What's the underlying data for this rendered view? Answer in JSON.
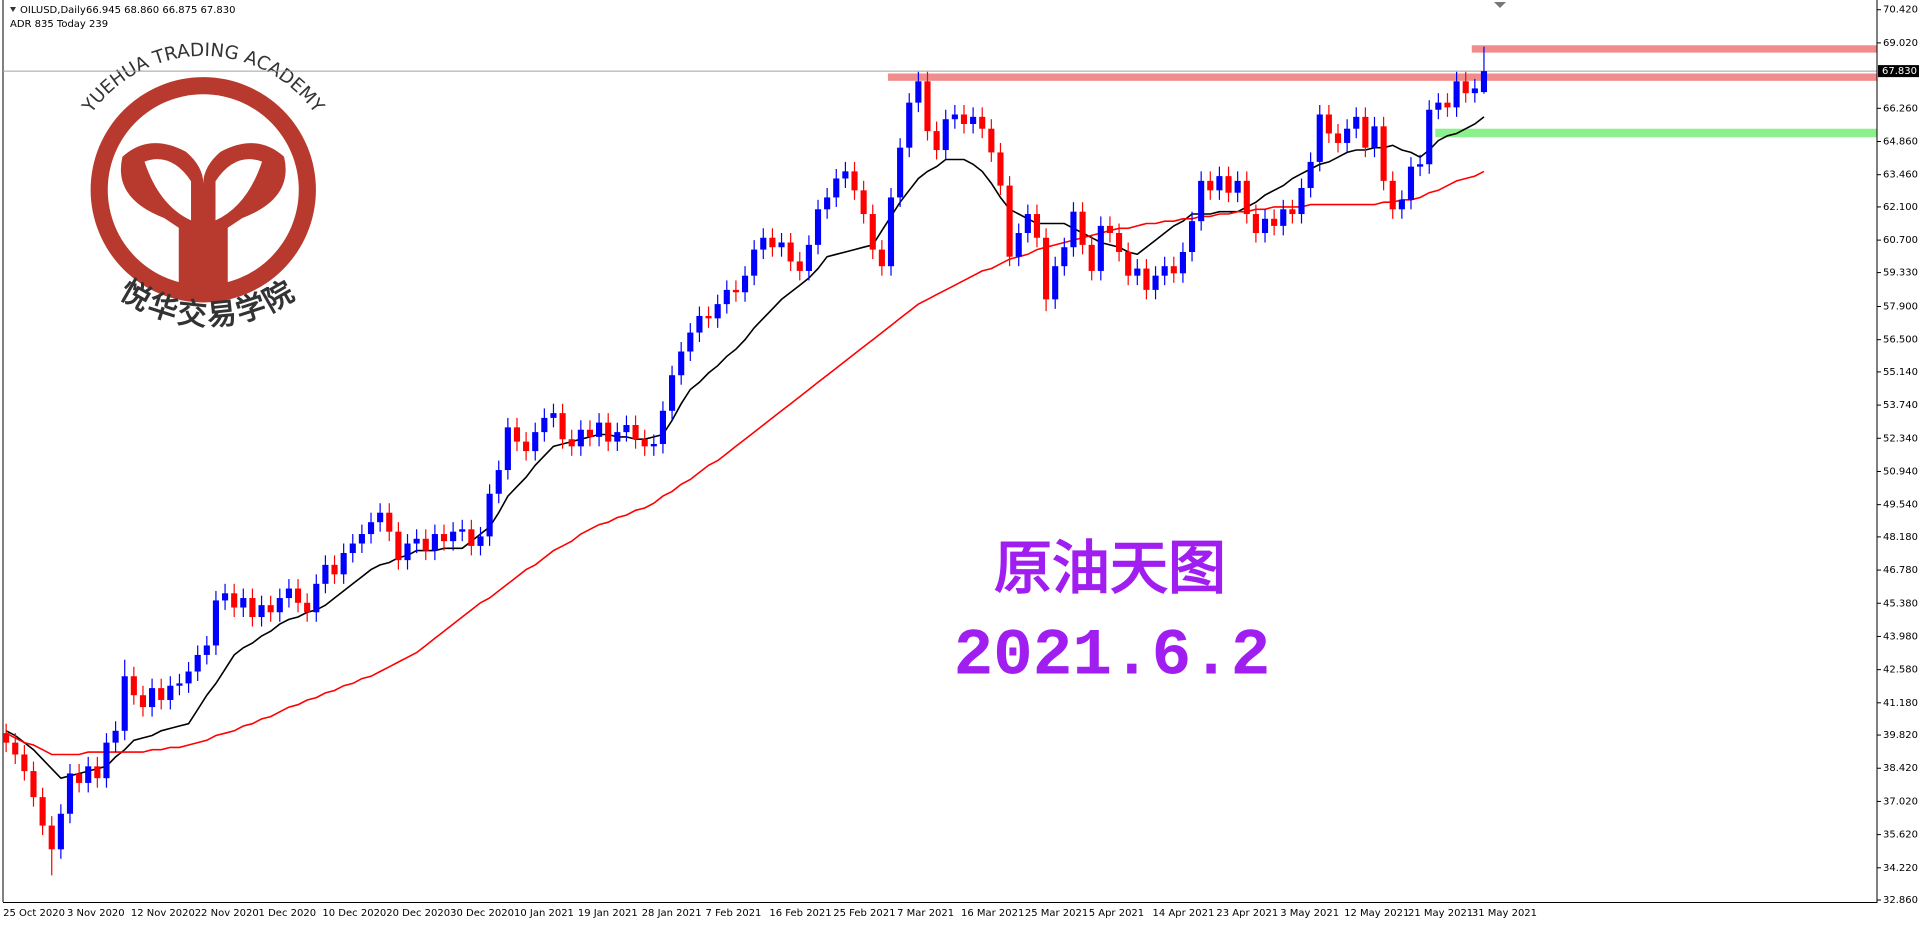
{
  "chart_data": {
    "type": "candlestick",
    "symbol_label": "OILUSD,Daily",
    "ohlc_label": "66.945 68.860 66.875 67.830",
    "info_label": "ADR 835  Today 239",
    "categories": [
      "25 Oct 2020",
      null,
      null,
      null,
      null,
      null,
      null,
      "3 Nov 2020",
      null,
      null,
      null,
      null,
      null,
      null,
      "12 Nov 2020",
      null,
      null,
      null,
      null,
      null,
      null,
      "22 Nov 2020",
      null,
      null,
      null,
      null,
      null,
      null,
      "1 Dec 2020",
      null,
      null,
      null,
      null,
      null,
      null,
      "10 Dec 2020",
      null,
      null,
      null,
      null,
      null,
      null,
      "20 Dec 2020",
      null,
      null,
      null,
      null,
      null,
      null,
      "30 Dec 2020",
      null,
      null,
      null,
      null,
      null,
      null,
      "10 Jan 2021",
      null,
      null,
      null,
      null,
      null,
      null,
      "19 Jan 2021",
      null,
      null,
      null,
      null,
      null,
      null,
      "28 Jan 2021",
      null,
      null,
      null,
      null,
      null,
      null,
      "7 Feb 2021",
      null,
      null,
      null,
      null,
      null,
      null,
      "16 Feb 2021",
      null,
      null,
      null,
      null,
      null,
      null,
      "25 Feb 2021",
      null,
      null,
      null,
      null,
      null,
      null,
      "7 Mar 2021",
      null,
      null,
      null,
      null,
      null,
      null,
      "16 Mar 2021",
      null,
      null,
      null,
      null,
      null,
      null,
      "25 Mar 2021",
      null,
      null,
      null,
      null,
      null,
      null,
      "5 Apr 2021",
      null,
      null,
      null,
      null,
      null,
      null,
      "14 Apr 2021",
      null,
      null,
      null,
      null,
      null,
      null,
      "23 Apr 2021",
      null,
      null,
      null,
      null,
      null,
      null,
      "3 May 2021",
      null,
      null,
      null,
      null,
      null,
      null,
      "12 May 2021",
      null,
      null,
      null,
      null,
      null,
      null,
      "21 May 2021",
      null,
      null,
      null,
      null,
      null,
      null,
      "31 May 2021",
      null
    ],
    "open": [
      39.9,
      39.5,
      39.0,
      38.3,
      37.2,
      36.0,
      35.0,
      36.5,
      38.2,
      37.8,
      38.5,
      38.0,
      39.5,
      40.0,
      42.3,
      41.5,
      41.0,
      41.8,
      41.3,
      41.9,
      42.0,
      42.5,
      43.2,
      43.6,
      45.5,
      45.8,
      45.2,
      45.6,
      44.8,
      45.3,
      45.0,
      45.6,
      46.0,
      45.4,
      45.0,
      46.2,
      47.0,
      46.6,
      47.5,
      47.9,
      48.3,
      48.8,
      49.2,
      48.4,
      47.2,
      47.9,
      48.1,
      47.6,
      48.3,
      48.0,
      48.4,
      48.5,
      47.8,
      48.2,
      50.0,
      51.0,
      52.8,
      52.2,
      51.8,
      52.6,
      53.2,
      53.4,
      52.3,
      52.0,
      52.7,
      52.4,
      53.0,
      52.2,
      52.6,
      52.9,
      52.3,
      52.0,
      52.1,
      53.5,
      55.0,
      56.0,
      56.8,
      57.5,
      57.4,
      58.0,
      58.6,
      58.5,
      59.2,
      60.3,
      60.8,
      60.4,
      60.6,
      59.8,
      59.4,
      60.5,
      62.0,
      62.5,
      63.3,
      63.6,
      62.8,
      61.8,
      60.3,
      59.6,
      62.5,
      64.6,
      66.5,
      67.4,
      65.3,
      64.5,
      65.8,
      66.0,
      65.6,
      65.9,
      65.4,
      64.4,
      63.0,
      60.0,
      61.0,
      61.8,
      60.8,
      58.2,
      59.6,
      60.4,
      61.9,
      60.5,
      59.4,
      61.3,
      61.0,
      60.2,
      59.2,
      59.5,
      58.6,
      59.2,
      59.6,
      59.3,
      60.2,
      61.5,
      63.2,
      62.8,
      63.4,
      62.7,
      63.2,
      61.8,
      61.0,
      61.6,
      61.3,
      62.0,
      61.8,
      62.9,
      64.0,
      66.0,
      65.2,
      64.8,
      65.4,
      65.9,
      64.6,
      65.5,
      63.2,
      62.0,
      62.4,
      63.8,
      63.9,
      66.2,
      66.5,
      66.3,
      67.4,
      66.9,
      66.945
    ],
    "high": [
      40.3,
      39.9,
      39.4,
      38.7,
      37.6,
      36.4,
      36.9,
      38.6,
      38.6,
      38.9,
      38.9,
      39.9,
      40.4,
      43.0,
      42.7,
      41.9,
      42.2,
      42.2,
      42.3,
      42.4,
      42.9,
      43.6,
      44.0,
      45.9,
      46.2,
      46.2,
      46.0,
      46.0,
      45.7,
      45.7,
      46.0,
      46.4,
      46.4,
      45.8,
      46.6,
      47.4,
      47.4,
      47.9,
      48.3,
      48.7,
      49.2,
      49.6,
      49.6,
      48.8,
      48.3,
      48.5,
      48.5,
      48.7,
      48.7,
      48.8,
      48.9,
      48.9,
      48.6,
      50.4,
      51.4,
      53.2,
      53.2,
      52.6,
      53.0,
      53.6,
      53.8,
      53.8,
      52.7,
      53.1,
      53.1,
      53.4,
      53.4,
      53.0,
      53.3,
      53.3,
      52.7,
      52.5,
      53.9,
      55.4,
      56.4,
      57.2,
      57.9,
      57.9,
      58.4,
      59.0,
      59.0,
      59.6,
      60.7,
      61.2,
      61.2,
      61.0,
      61.0,
      60.2,
      60.9,
      62.4,
      62.9,
      63.7,
      64.0,
      64.0,
      63.2,
      62.2,
      60.7,
      62.9,
      65.0,
      66.9,
      67.8,
      67.8,
      65.7,
      66.2,
      66.4,
      66.4,
      66.3,
      66.3,
      65.8,
      64.8,
      63.4,
      61.4,
      62.2,
      62.2,
      61.2,
      60.0,
      60.8,
      62.3,
      62.3,
      60.9,
      61.7,
      61.7,
      61.4,
      60.6,
      59.9,
      59.9,
      59.6,
      60.0,
      60.0,
      60.6,
      61.9,
      63.6,
      63.6,
      63.8,
      63.8,
      63.6,
      63.6,
      62.2,
      62.0,
      62.0,
      62.4,
      62.4,
      63.3,
      64.4,
      66.4,
      66.4,
      65.6,
      65.8,
      66.3,
      66.3,
      65.9,
      65.9,
      63.6,
      62.8,
      64.2,
      64.3,
      66.6,
      66.9,
      66.9,
      67.8,
      67.8,
      67.5,
      68.86
    ],
    "low": [
      39.1,
      38.6,
      37.9,
      36.8,
      35.6,
      33.9,
      34.6,
      36.1,
      37.4,
      37.4,
      37.6,
      37.6,
      39.1,
      39.6,
      41.1,
      40.6,
      40.6,
      40.9,
      40.9,
      41.5,
      41.6,
      42.1,
      42.8,
      43.2,
      45.1,
      44.8,
      44.8,
      44.4,
      44.4,
      44.6,
      44.6,
      45.2,
      45.0,
      44.6,
      44.6,
      45.8,
      46.2,
      46.2,
      47.1,
      47.5,
      47.9,
      48.4,
      48.0,
      46.8,
      46.8,
      47.5,
      47.2,
      47.2,
      47.6,
      47.6,
      48.0,
      47.4,
      47.4,
      47.8,
      49.6,
      50.6,
      51.8,
      51.4,
      51.4,
      52.2,
      52.8,
      51.9,
      51.6,
      51.6,
      52.0,
      52.0,
      51.8,
      51.8,
      52.2,
      51.9,
      51.6,
      51.6,
      51.7,
      53.1,
      54.6,
      55.6,
      56.4,
      57.0,
      57.0,
      57.6,
      58.1,
      58.1,
      58.8,
      59.9,
      60.0,
      60.0,
      59.4,
      59.0,
      59.0,
      60.1,
      61.6,
      62.1,
      62.9,
      62.4,
      61.4,
      59.9,
      59.2,
      59.2,
      62.1,
      64.2,
      66.1,
      64.9,
      64.1,
      64.1,
      65.4,
      65.2,
      65.2,
      65.0,
      64.0,
      62.6,
      59.6,
      59.6,
      60.6,
      60.4,
      57.7,
      57.8,
      59.2,
      60.0,
      60.1,
      59.0,
      59.0,
      60.6,
      59.8,
      58.8,
      58.8,
      58.2,
      58.2,
      58.8,
      58.9,
      58.9,
      59.8,
      61.1,
      62.4,
      62.4,
      62.3,
      62.3,
      61.4,
      60.6,
      60.6,
      60.9,
      60.9,
      61.4,
      61.4,
      62.5,
      63.6,
      64.8,
      64.4,
      64.4,
      65.0,
      64.2,
      64.2,
      62.8,
      61.6,
      61.6,
      62.0,
      63.4,
      63.5,
      65.8,
      65.9,
      65.9,
      66.5,
      66.5,
      66.875
    ],
    "close": [
      39.5,
      39.0,
      38.3,
      37.2,
      36.0,
      35.0,
      36.5,
      38.2,
      37.8,
      38.5,
      38.0,
      39.5,
      40.0,
      42.3,
      41.5,
      41.0,
      41.8,
      41.3,
      41.9,
      42.0,
      42.5,
      43.2,
      43.6,
      45.5,
      45.8,
      45.2,
      45.6,
      44.8,
      45.3,
      45.0,
      45.6,
      46.0,
      45.4,
      45.0,
      46.2,
      47.0,
      46.6,
      47.5,
      47.9,
      48.3,
      48.8,
      49.2,
      48.4,
      47.2,
      47.9,
      48.1,
      47.6,
      48.3,
      48.0,
      48.4,
      48.5,
      47.8,
      48.2,
      50.0,
      51.0,
      52.8,
      52.2,
      51.8,
      52.6,
      53.2,
      53.4,
      52.3,
      52.0,
      52.7,
      52.4,
      53.0,
      52.2,
      52.6,
      52.9,
      52.3,
      52.0,
      52.1,
      53.5,
      55.0,
      56.0,
      56.8,
      57.5,
      57.4,
      58.0,
      58.6,
      58.5,
      59.2,
      60.3,
      60.8,
      60.4,
      60.6,
      59.8,
      59.4,
      60.5,
      62.0,
      62.5,
      63.3,
      63.6,
      62.8,
      61.8,
      60.3,
      59.6,
      62.5,
      64.6,
      66.5,
      67.4,
      65.3,
      64.5,
      65.8,
      66.0,
      65.6,
      65.9,
      65.4,
      64.4,
      63.0,
      60.0,
      61.0,
      61.8,
      60.8,
      58.2,
      59.6,
      60.4,
      61.9,
      60.5,
      59.4,
      61.3,
      61.0,
      60.2,
      59.2,
      59.5,
      58.6,
      59.2,
      59.6,
      59.3,
      60.2,
      61.5,
      63.2,
      62.8,
      63.4,
      62.7,
      63.2,
      61.8,
      61.0,
      61.6,
      61.3,
      62.0,
      61.8,
      62.9,
      64.0,
      66.0,
      65.2,
      64.8,
      65.4,
      65.9,
      64.6,
      65.5,
      63.2,
      62.0,
      62.4,
      63.8,
      63.9,
      66.2,
      66.5,
      66.3,
      67.4,
      66.9,
      67.1,
      67.83
    ],
    "up_color": "#0000ff",
    "down_color": "#ff0000",
    "lines": [
      {
        "color": "#000000",
        "values": [
          40.0,
          39.8,
          39.5,
          39.2,
          38.8,
          38.4,
          38.0,
          38.1,
          38.2,
          38.3,
          38.4,
          38.5,
          38.9,
          39.2,
          39.6,
          39.7,
          39.8,
          40.0,
          40.1,
          40.2,
          40.3,
          40.9,
          41.5,
          42.0,
          42.6,
          43.2,
          43.5,
          43.7,
          44.0,
          44.2,
          44.5,
          44.7,
          44.8,
          45.0,
          45.1,
          45.3,
          45.6,
          45.9,
          46.2,
          46.5,
          46.8,
          47.0,
          47.1,
          47.3,
          47.4,
          47.6,
          47.6,
          47.6,
          47.7,
          47.7,
          47.7,
          48.0,
          48.3,
          48.6,
          49.2,
          49.9,
          50.3,
          50.7,
          51.2,
          51.6,
          52.0,
          52.1,
          52.2,
          52.3,
          52.4,
          52.5,
          52.5,
          52.4,
          52.4,
          52.3,
          52.3,
          52.4,
          52.5,
          53.1,
          53.8,
          54.4,
          54.7,
          55.1,
          55.4,
          55.8,
          56.1,
          56.5,
          57.0,
          57.4,
          57.8,
          58.2,
          58.5,
          58.8,
          59.1,
          59.5,
          60.0,
          60.1,
          60.2,
          60.3,
          60.4,
          60.5,
          61.1,
          61.7,
          62.3,
          62.8,
          63.3,
          63.6,
          63.8,
          64.1,
          64.1,
          64.1,
          63.9,
          63.6,
          63.1,
          62.5,
          62.0,
          61.8,
          61.6,
          61.4,
          61.4,
          61.4,
          61.4,
          61.2,
          61.0,
          60.8,
          60.6,
          60.5,
          60.4,
          60.2,
          60.1,
          60.4,
          60.7,
          61.0,
          61.3,
          61.5,
          61.8,
          61.8,
          61.8,
          61.9,
          61.9,
          61.9,
          62.1,
          62.3,
          62.6,
          62.8,
          63.0,
          63.3,
          63.5,
          63.7,
          63.9,
          64.0,
          64.2,
          64.4,
          64.5,
          64.5,
          64.6,
          64.6,
          64.7,
          64.5,
          64.4,
          64.2,
          64.5,
          64.9,
          65.1,
          65.2,
          65.4,
          65.6,
          65.9
        ]
      },
      {
        "color": "#ff0000",
        "values": [
          39.9,
          39.7,
          39.5,
          39.4,
          39.2,
          39.0,
          39.0,
          39.0,
          39.0,
          39.1,
          39.1,
          39.1,
          39.1,
          39.1,
          39.1,
          39.1,
          39.2,
          39.2,
          39.3,
          39.3,
          39.4,
          39.5,
          39.6,
          39.8,
          39.9,
          40.0,
          40.2,
          40.3,
          40.5,
          40.6,
          40.8,
          41.0,
          41.1,
          41.3,
          41.4,
          41.6,
          41.7,
          41.9,
          42.0,
          42.2,
          42.3,
          42.5,
          42.7,
          42.9,
          43.1,
          43.3,
          43.6,
          43.9,
          44.2,
          44.5,
          44.8,
          45.1,
          45.4,
          45.6,
          45.9,
          46.2,
          46.5,
          46.8,
          47.0,
          47.3,
          47.6,
          47.8,
          48.0,
          48.3,
          48.5,
          48.7,
          48.8,
          49.0,
          49.1,
          49.3,
          49.4,
          49.6,
          49.9,
          50.1,
          50.4,
          50.6,
          50.9,
          51.2,
          51.4,
          51.7,
          52.0,
          52.3,
          52.6,
          52.9,
          53.2,
          53.5,
          53.8,
          54.1,
          54.4,
          54.7,
          55.0,
          55.3,
          55.6,
          55.9,
          56.2,
          56.5,
          56.8,
          57.1,
          57.4,
          57.7,
          58.0,
          58.2,
          58.4,
          58.6,
          58.8,
          59.0,
          59.2,
          59.4,
          59.5,
          59.7,
          59.9,
          60.0,
          60.1,
          60.3,
          60.4,
          60.5,
          60.6,
          60.7,
          60.8,
          60.9,
          61.0,
          61.1,
          61.2,
          61.2,
          61.3,
          61.4,
          61.4,
          61.5,
          61.5,
          61.6,
          61.6,
          61.7,
          61.7,
          61.8,
          61.8,
          61.9,
          61.9,
          62.0,
          62.0,
          62.1,
          62.1,
          62.1,
          62.1,
          62.2,
          62.2,
          62.2,
          62.2,
          62.2,
          62.2,
          62.2,
          62.2,
          62.3,
          62.3,
          62.4,
          62.4,
          62.5,
          62.7,
          62.8,
          63.0,
          63.2,
          63.3,
          63.4,
          63.6
        ]
      }
    ],
    "zones": [
      {
        "color": "#f08080",
        "start": 97,
        "low": 67.42,
        "high": 67.73
      },
      {
        "color": "#f08080",
        "start": 161,
        "low": 68.61,
        "high": 68.92
      },
      {
        "color": "#7ff07f",
        "start": 157,
        "low": 65.04,
        "high": 65.4
      }
    ],
    "last_price": {
      "value": 67.83,
      "label": "67.830"
    },
    "ylim": [
      32.76,
      70.83
    ],
    "yticks": [
      {
        "value": 70.42,
        "label": "70.420"
      },
      {
        "value": 69.02,
        "label": "69.020"
      },
      {
        "value": 66.26,
        "label": "66.260"
      },
      {
        "value": 64.86,
        "label": "64.860"
      },
      {
        "value": 63.46,
        "label": "63.460"
      },
      {
        "value": 62.1,
        "label": "62.100"
      },
      {
        "value": 60.7,
        "label": "60.700"
      },
      {
        "value": 59.33,
        "label": "59.330"
      },
      {
        "value": 57.9,
        "label": "57.900"
      },
      {
        "value": 56.5,
        "label": "56.500"
      },
      {
        "value": 55.14,
        "label": "55.140"
      },
      {
        "value": 53.74,
        "label": "53.740"
      },
      {
        "value": 52.34,
        "label": "52.340"
      },
      {
        "value": 50.94,
        "label": "50.940"
      },
      {
        "value": 49.54,
        "label": "49.540"
      },
      {
        "value": 48.18,
        "label": "48.180"
      },
      {
        "value": 46.78,
        "label": "46.780"
      },
      {
        "value": 45.38,
        "label": "45.380"
      },
      {
        "value": 43.98,
        "label": "43.980"
      },
      {
        "value": 42.58,
        "label": "42.580"
      },
      {
        "value": 41.18,
        "label": "41.180"
      },
      {
        "value": 39.82,
        "label": "39.820"
      },
      {
        "value": 38.42,
        "label": "38.420"
      },
      {
        "value": 37.02,
        "label": "37.020"
      },
      {
        "value": 35.62,
        "label": "35.620"
      },
      {
        "value": 34.22,
        "label": "34.220"
      },
      {
        "value": 32.86,
        "label": "32.860"
      }
    ],
    "grid": false
  },
  "overlay": {
    "title": "原油天图",
    "date": "2021.6.2",
    "color": "#a01ef0"
  },
  "logo": {
    "name": "YUEHUA TRADING ACADEMY",
    "chinese": "悦华交易学院",
    "color": "#b8392d"
  }
}
